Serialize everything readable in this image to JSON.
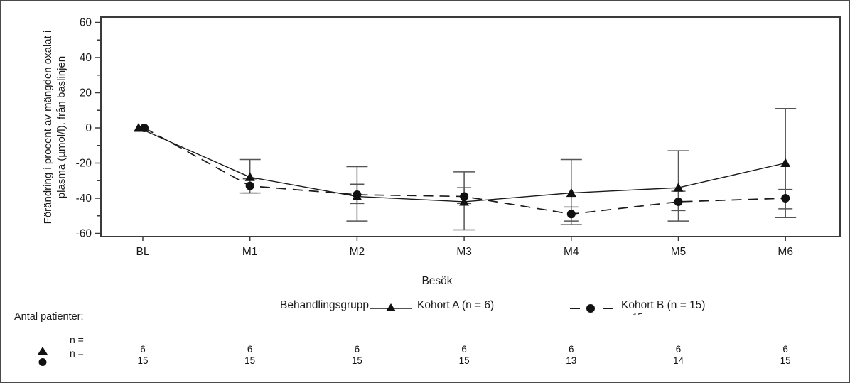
{
  "figure": {
    "ylabel_line1": "Förändring i procent av mängden oxalat i",
    "ylabel_line2": "plasma (µmol/l), från baslinjen",
    "xlabel": "Besök",
    "legend": {
      "title": "Behandlingsgrupp",
      "series_a_label": "Kohort A (n = 6)",
      "series_b_label": "Kohort B (n = 15)",
      "clipped_artifact": "15"
    },
    "footer": {
      "title": "Antal patienter:",
      "n_eq_a": "n =",
      "n_eq_b": "n ="
    }
  },
  "chart_data": {
    "type": "line",
    "title": "",
    "xlabel": "Besök",
    "ylabel": "Förändring i procent av mängden oxalat i plasma (µmol/l), från baslinjen",
    "categories": [
      "BL",
      "M1",
      "M2",
      "M3",
      "M4",
      "M5",
      "M6"
    ],
    "ylim": [
      -60,
      60
    ],
    "y_major_step": 20,
    "y_minor_step": 10,
    "y_ticks": [
      -60,
      -40,
      -20,
      0,
      20,
      40,
      60
    ],
    "grid": false,
    "legend_position": "bottom",
    "series": [
      {
        "name": "Kohort A (n = 6)",
        "marker": "triangle",
        "line_style": "solid",
        "values": [
          0,
          -28,
          -39,
          -42,
          -37,
          -34,
          -20
        ],
        "err_high": [
          null,
          -18,
          -22,
          -25,
          -18,
          -13,
          11
        ],
        "err_low": [
          null,
          -37,
          -53,
          -58,
          -55,
          -53,
          -51
        ],
        "n_patients": [
          6,
          6,
          6,
          6,
          6,
          6,
          6
        ]
      },
      {
        "name": "Kohort B (n = 15)",
        "marker": "circle",
        "line_style": "dashed",
        "values": [
          0,
          -33,
          -38,
          -39,
          -49,
          -42,
          -40
        ],
        "err_high": [
          null,
          -29,
          -32,
          -34,
          -45,
          -36,
          -35
        ],
        "err_low": [
          null,
          -37,
          -43,
          -43,
          -53,
          -47,
          -46
        ],
        "n_patients": [
          15,
          15,
          15,
          15,
          13,
          14,
          15
        ]
      }
    ],
    "colors": {
      "line": "#1a1a1a",
      "marker": "#111111",
      "error_bar": "#555555",
      "axis": "#3a3a3a",
      "text": "#1a1a1a",
      "background": "#ffffff"
    }
  }
}
